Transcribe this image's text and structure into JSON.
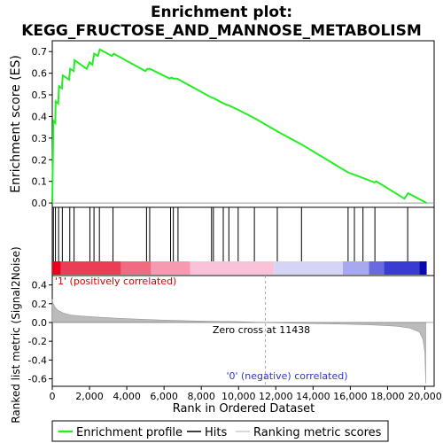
{
  "chart_data": {
    "type": "line",
    "title_line1": "Enrichment plot:",
    "title_line2": "KEGG_FRUCTOSE_AND_MANNOSE_METABOLISM",
    "xlabel": "Rank in Ordered Dataset",
    "ylabel_top": "Enrichment score (ES)",
    "ylabel_bottom": "Ranked list metric (Signal2Noise)",
    "x_range": [
      0,
      20500
    ],
    "es_ylim": [
      -0.02,
      0.75
    ],
    "metric_ylim": [
      -0.68,
      0.5
    ],
    "x_ticks": [
      0,
      2000,
      4000,
      6000,
      8000,
      10000,
      12000,
      14000,
      16000,
      18000,
      20000
    ],
    "x_tick_labels": [
      "0",
      "2,000",
      "4,000",
      "6,000",
      "8,000",
      "10,000",
      "12,000",
      "14,000",
      "16,000",
      "18,000",
      "20,000"
    ],
    "es_y_ticks": [
      0.0,
      0.1,
      0.2,
      0.3,
      0.4,
      0.5,
      0.6,
      0.7
    ],
    "es_y_tick_labels": [
      "0.0",
      "0.1",
      "0.2",
      "0.3",
      "0.4",
      "0.5",
      "0.6",
      "0.7"
    ],
    "metric_y_ticks": [
      0.4,
      0.2,
      0.0,
      -0.2,
      -0.4,
      -0.6
    ],
    "metric_y_tick_labels": [
      "0.4",
      "0.2",
      "0.0",
      "-0.2",
      "-0.4",
      "-0.6"
    ],
    "enrichment_profile": [
      [
        0,
        0.0
      ],
      [
        60,
        0.38
      ],
      [
        160,
        0.37
      ],
      [
        180,
        0.47
      ],
      [
        320,
        0.46
      ],
      [
        360,
        0.54
      ],
      [
        520,
        0.53
      ],
      [
        560,
        0.59
      ],
      [
        900,
        0.57
      ],
      [
        960,
        0.62
      ],
      [
        1150,
        0.61
      ],
      [
        1200,
        0.66
      ],
      [
        1850,
        0.62
      ],
      [
        2000,
        0.65
      ],
      [
        2150,
        0.64
      ],
      [
        2250,
        0.69
      ],
      [
        2450,
        0.68
      ],
      [
        2550,
        0.71
      ],
      [
        3200,
        0.68
      ],
      [
        3300,
        0.69
      ],
      [
        5000,
        0.61
      ],
      [
        5100,
        0.62
      ],
      [
        5250,
        0.62
      ],
      [
        6300,
        0.575
      ],
      [
        6400,
        0.58
      ],
      [
        6500,
        0.575
      ],
      [
        6700,
        0.575
      ],
      [
        8500,
        0.49
      ],
      [
        8650,
        0.485
      ],
      [
        9200,
        0.46
      ],
      [
        9500,
        0.45
      ],
      [
        10000,
        0.43
      ],
      [
        10900,
        0.39
      ],
      [
        12100,
        0.33
      ],
      [
        13400,
        0.27
      ],
      [
        15900,
        0.14
      ],
      [
        16250,
        0.13
      ],
      [
        16700,
        0.115
      ],
      [
        17300,
        0.095
      ],
      [
        17400,
        0.1
      ],
      [
        18900,
        0.02
      ],
      [
        19100,
        0.045
      ],
      [
        20100,
        0.0
      ]
    ],
    "hits": [
      60,
      170,
      340,
      540,
      940,
      1170,
      2020,
      2240,
      2530,
      3260,
      5060,
      5230,
      6350,
      6500,
      6750,
      8550,
      8650,
      9180,
      9480,
      9980,
      10850,
      12080,
      13380,
      15880,
      16220,
      16680,
      17320,
      19080
    ],
    "zero_cross_rank": 11438,
    "zero_cross_label": "Zero cross at 11438",
    "positive_label": "'1' (positively correlated)",
    "negative_label": "'0' (negative) correlated)",
    "metric_curve": [
      [
        0,
        0.25
      ],
      [
        50,
        0.2
      ],
      [
        150,
        0.16
      ],
      [
        300,
        0.13
      ],
      [
        600,
        0.1
      ],
      [
        1000,
        0.08
      ],
      [
        1500,
        0.07
      ],
      [
        2500,
        0.055
      ],
      [
        4000,
        0.04
      ],
      [
        6000,
        0.025
      ],
      [
        8000,
        0.015
      ],
      [
        10000,
        0.008
      ],
      [
        11438,
        0.0
      ],
      [
        13000,
        -0.008
      ],
      [
        15000,
        -0.015
      ],
      [
        17000,
        -0.025
      ],
      [
        18500,
        -0.04
      ],
      [
        19200,
        -0.06
      ],
      [
        19700,
        -0.1
      ],
      [
        19900,
        -0.18
      ],
      [
        20000,
        -0.32
      ],
      [
        20050,
        -0.65
      ]
    ],
    "heatmap_bands": [
      {
        "from": 0,
        "to": 450,
        "color": "#e8001e"
      },
      {
        "from": 450,
        "to": 3700,
        "color": "#ec3d57"
      },
      {
        "from": 3700,
        "to": 5300,
        "color": "#f06b82"
      },
      {
        "from": 5300,
        "to": 7400,
        "color": "#f59ab0"
      },
      {
        "from": 7400,
        "to": 11900,
        "color": "#f9c2d8"
      },
      {
        "from": 11900,
        "to": 15600,
        "color": "#d4d4f4"
      },
      {
        "from": 15600,
        "to": 17000,
        "color": "#a8a8ee"
      },
      {
        "from": 17000,
        "to": 17800,
        "color": "#6a6ae0"
      },
      {
        "from": 17800,
        "to": 19700,
        "color": "#3a3ad4"
      },
      {
        "from": 19700,
        "to": 20100,
        "color": "#0a0ab0"
      }
    ],
    "colors": {
      "profile": "#22ee22",
      "hits": "#000000",
      "metric_fill": "#bbbbbb",
      "zero_line": "#aaaaaa"
    },
    "legend": {
      "items": [
        {
          "label": "Enrichment profile",
          "color": "#22ee22",
          "kind": "line"
        },
        {
          "label": "Hits",
          "color": "#000000",
          "kind": "line"
        },
        {
          "label": "Ranking metric scores",
          "color": "#cccccc",
          "kind": "line"
        }
      ]
    }
  }
}
